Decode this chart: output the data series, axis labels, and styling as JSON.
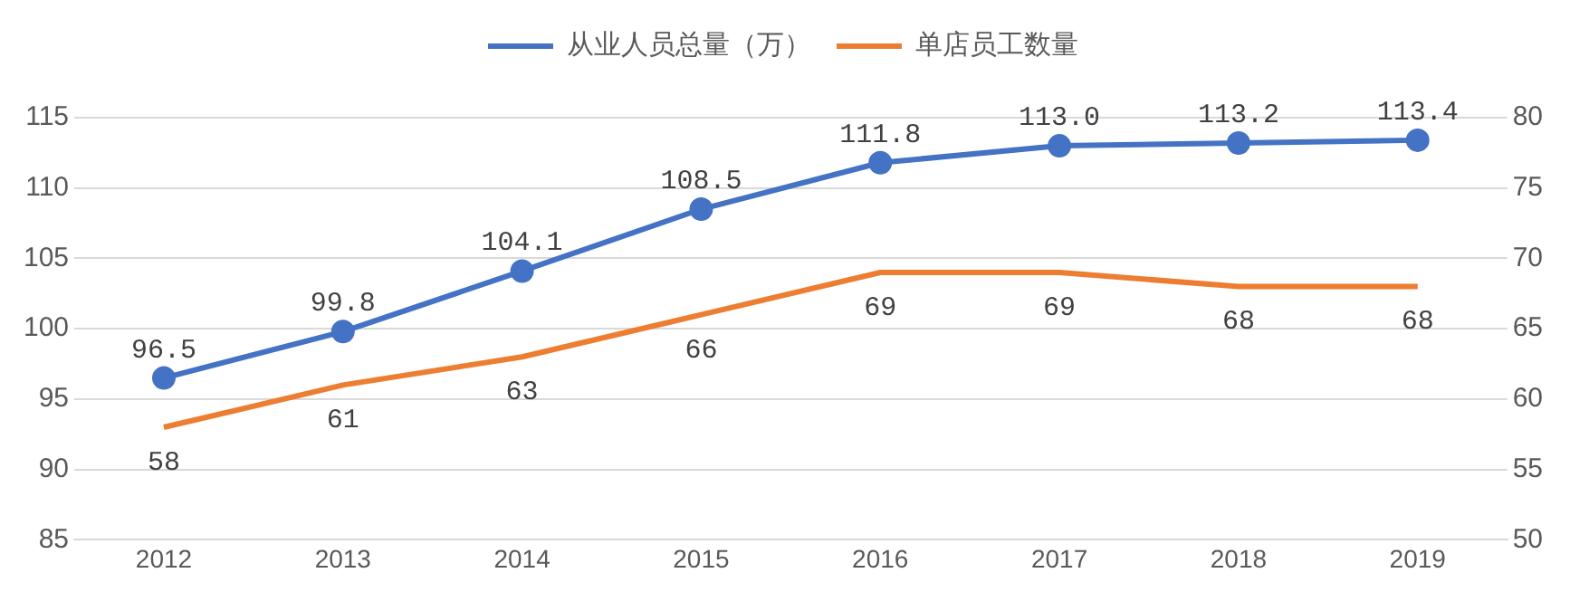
{
  "chart_data": {
    "type": "line",
    "categories": [
      "2012",
      "2013",
      "2014",
      "2015",
      "2016",
      "2017",
      "2018",
      "2019"
    ],
    "series": [
      {
        "name": "从业人员总量（万）",
        "color": "#4472c4",
        "marker": "circle",
        "values": [
          96.5,
          99.8,
          104.1,
          108.5,
          111.8,
          113.0,
          113.2,
          113.4
        ],
        "value_labels": [
          "96.5",
          "99.8",
          "104.1",
          "108.5",
          "111.8",
          "113.0",
          "113.2",
          "113.4"
        ]
      },
      {
        "name": "单店员工数量",
        "color": "#ed7d31",
        "marker": "none",
        "axis": "y2",
        "values": [
          58,
          61,
          63,
          66,
          69,
          69,
          68,
          68
        ],
        "value_labels": [
          "58",
          "61",
          "63",
          "66",
          "69",
          "69",
          "68",
          "68"
        ]
      }
    ],
    "ylim": [
      85,
      115
    ],
    "yticks": [
      85,
      90,
      95,
      100,
      105,
      110,
      115
    ],
    "y2lim": [
      50,
      80
    ],
    "y2ticks": [
      50,
      55,
      60,
      65,
      70,
      75,
      80
    ],
    "grid": "y",
    "legend": "top"
  }
}
